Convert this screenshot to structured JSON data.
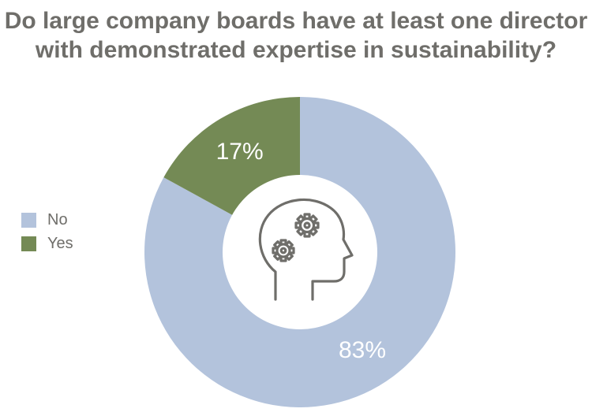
{
  "title_line1": "Do large company boards have at least one director",
  "title_line2": "with demonstrated expertise in sustainability?",
  "legend": [
    {
      "label": "No",
      "color": "#b3c3dc"
    },
    {
      "label": "Yes",
      "color": "#748a55"
    }
  ],
  "chart_data": {
    "type": "pie",
    "donut": true,
    "title": "Do large company boards have at least one director with demonstrated expertise in sustainability?",
    "categories": [
      "No",
      "Yes"
    ],
    "values": [
      83,
      17
    ],
    "labels": [
      "83%",
      "17%"
    ],
    "colors": [
      "#b3c3dc",
      "#748a55"
    ],
    "legend_position": "left",
    "center_icon": "head-with-gears-icon"
  }
}
